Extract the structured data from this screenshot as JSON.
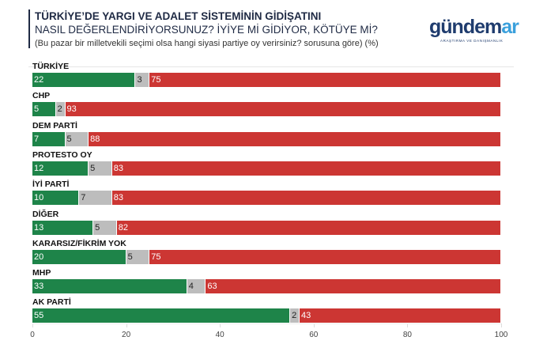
{
  "header": {
    "title_bold": "TÜRKİYE’DE YARGI VE ADALET SİSTEMİNİN GİDİŞATINI",
    "title_rest": " NASIL DEĞERLENDİRİYORSUNUZ? İYİYE Mİ GİDİYOR, KÖTÜYE Mİ?",
    "subtitle": "(Bu pazar bir milletvekili seçimi olsa hangi siyasi partiye oy verirsiniz? sorusuna göre) (%)"
  },
  "logo": {
    "main": "gündem",
    "accent": "ar",
    "tagline": "ARAŞTIRMA VE DANIŞMANLIK"
  },
  "chart_data": {
    "type": "bar",
    "orientation": "horizontal",
    "stacked": true,
    "categories": [
      "TÜRKİYE",
      "CHP",
      "DEM PARTİ",
      "PROTESTO OY",
      "İYİ PARTİ",
      "DİĞER",
      "KARARSIZ/FİKRİM YOK",
      "MHP",
      "AK PARTİ"
    ],
    "series": [
      {
        "values": [
          22,
          5,
          7,
          12,
          10,
          13,
          20,
          33,
          55
        ],
        "color": "#1e8449"
      },
      {
        "values": [
          3,
          2,
          5,
          5,
          7,
          5,
          5,
          4,
          2
        ],
        "color": "#bdbdbd"
      },
      {
        "values": [
          75,
          93,
          88,
          83,
          83,
          82,
          75,
          63,
          43
        ],
        "color": "#cc3633"
      }
    ],
    "xlim": [
      0,
      100
    ],
    "xticks": [
      "0",
      "20",
      "40",
      "60",
      "80",
      "100"
    ],
    "grid": false
  }
}
